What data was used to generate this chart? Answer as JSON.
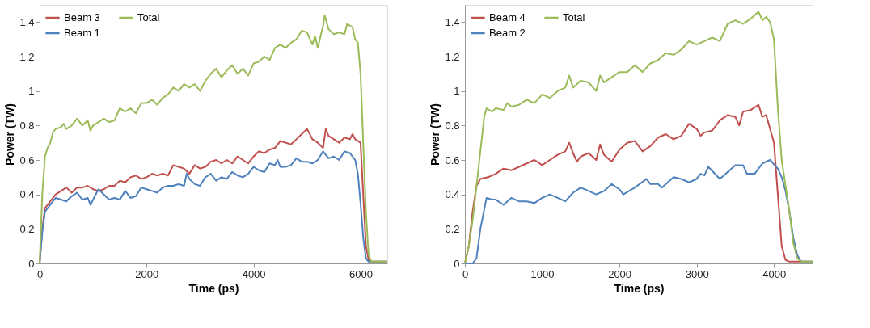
{
  "chart_data": [
    {
      "type": "line",
      "xlabel": "Time (ps)",
      "ylabel": "Power (TW)",
      "xlim": [
        0,
        6500
      ],
      "xticks": [
        0,
        2000,
        4000,
        6000
      ],
      "ylim": [
        0,
        1.5
      ],
      "yticks": [
        0,
        0.2,
        0.4,
        0.6,
        0.8,
        1,
        1.2,
        1.4
      ],
      "grid": false,
      "legend": "top left",
      "marker": "none",
      "line_style": "solid",
      "series": [
        {
          "name": "Beam 3",
          "color": "#c0504d",
          "x": [
            0,
            50,
            100,
            200,
            300,
            400,
            500,
            600,
            700,
            800,
            900,
            1000,
            1100,
            1200,
            1300,
            1400,
            1500,
            1600,
            1700,
            1800,
            1900,
            2000,
            2100,
            2200,
            2300,
            2400,
            2500,
            2600,
            2700,
            2800,
            2900,
            3000,
            3100,
            3200,
            3300,
            3400,
            3500,
            3600,
            3700,
            3800,
            3900,
            4000,
            4100,
            4200,
            4300,
            4400,
            4500,
            4600,
            4700,
            4800,
            4900,
            5000,
            5100,
            5200,
            5300,
            5350,
            5400,
            5500,
            5600,
            5700,
            5800,
            5850,
            5900,
            6000,
            6050,
            6100,
            6150,
            6200,
            6500
          ],
          "values": [
            0,
            0.2,
            0.32,
            0.36,
            0.4,
            0.42,
            0.44,
            0.41,
            0.44,
            0.44,
            0.45,
            0.43,
            0.42,
            0.43,
            0.45,
            0.45,
            0.48,
            0.47,
            0.5,
            0.51,
            0.49,
            0.5,
            0.52,
            0.51,
            0.52,
            0.51,
            0.57,
            0.56,
            0.55,
            0.52,
            0.57,
            0.55,
            0.56,
            0.59,
            0.6,
            0.58,
            0.6,
            0.58,
            0.62,
            0.6,
            0.58,
            0.62,
            0.65,
            0.64,
            0.66,
            0.67,
            0.71,
            0.7,
            0.69,
            0.72,
            0.75,
            0.78,
            0.72,
            0.7,
            0.67,
            0.78,
            0.74,
            0.72,
            0.7,
            0.73,
            0.72,
            0.75,
            0.72,
            0.7,
            0.4,
            0.1,
            0.02,
            0.01,
            0.01
          ]
        },
        {
          "name": "Beam 1",
          "color": "#4f81bd",
          "x": [
            0,
            50,
            100,
            200,
            300,
            400,
            500,
            600,
            700,
            800,
            900,
            950,
            1000,
            1100,
            1200,
            1300,
            1400,
            1500,
            1600,
            1700,
            1800,
            1900,
            2000,
            2100,
            2200,
            2300,
            2400,
            2500,
            2600,
            2700,
            2750,
            2800,
            2900,
            3000,
            3100,
            3200,
            3300,
            3400,
            3500,
            3600,
            3700,
            3800,
            3900,
            4000,
            4100,
            4200,
            4300,
            4400,
            4450,
            4500,
            4600,
            4700,
            4800,
            4900,
            5000,
            5100,
            5200,
            5300,
            5400,
            5500,
            5600,
            5700,
            5800,
            5900,
            5950,
            6000,
            6050,
            6100,
            6150,
            6500
          ],
          "values": [
            0,
            0.18,
            0.3,
            0.34,
            0.38,
            0.37,
            0.36,
            0.39,
            0.41,
            0.37,
            0.38,
            0.34,
            0.37,
            0.43,
            0.4,
            0.37,
            0.38,
            0.37,
            0.42,
            0.38,
            0.39,
            0.44,
            0.43,
            0.42,
            0.41,
            0.44,
            0.45,
            0.45,
            0.46,
            0.45,
            0.52,
            0.49,
            0.46,
            0.45,
            0.5,
            0.52,
            0.48,
            0.5,
            0.49,
            0.53,
            0.51,
            0.5,
            0.52,
            0.56,
            0.54,
            0.53,
            0.58,
            0.57,
            0.6,
            0.56,
            0.56,
            0.57,
            0.61,
            0.59,
            0.59,
            0.58,
            0.6,
            0.65,
            0.61,
            0.62,
            0.6,
            0.65,
            0.64,
            0.6,
            0.52,
            0.35,
            0.15,
            0.03,
            0.01,
            0.01
          ]
        },
        {
          "name": "Total",
          "color": "#9bbb59",
          "x": [
            0,
            50,
            100,
            150,
            200,
            250,
            300,
            400,
            450,
            500,
            600,
            700,
            800,
            900,
            950,
            1000,
            1100,
            1200,
            1300,
            1400,
            1500,
            1600,
            1700,
            1800,
            1900,
            2000,
            2100,
            2200,
            2300,
            2400,
            2500,
            2600,
            2700,
            2800,
            2900,
            3000,
            3100,
            3200,
            3300,
            3400,
            3500,
            3600,
            3700,
            3800,
            3900,
            4000,
            4100,
            4200,
            4300,
            4400,
            4500,
            4600,
            4700,
            4800,
            4900,
            5000,
            5100,
            5150,
            5200,
            5300,
            5330,
            5400,
            5500,
            5600,
            5700,
            5750,
            5850,
            5900,
            5950,
            6000,
            6050,
            6100,
            6150,
            6200,
            6500
          ],
          "values": [
            0,
            0.4,
            0.62,
            0.67,
            0.7,
            0.76,
            0.78,
            0.79,
            0.81,
            0.78,
            0.8,
            0.84,
            0.8,
            0.83,
            0.77,
            0.8,
            0.82,
            0.84,
            0.82,
            0.83,
            0.9,
            0.88,
            0.9,
            0.87,
            0.93,
            0.93,
            0.95,
            0.92,
            0.96,
            0.98,
            1.02,
            1.0,
            1.04,
            1.02,
            1.04,
            1.0,
            1.06,
            1.1,
            1.13,
            1.08,
            1.12,
            1.15,
            1.1,
            1.13,
            1.09,
            1.16,
            1.17,
            1.2,
            1.18,
            1.25,
            1.27,
            1.25,
            1.28,
            1.3,
            1.35,
            1.34,
            1.27,
            1.32,
            1.25,
            1.38,
            1.44,
            1.36,
            1.33,
            1.34,
            1.33,
            1.39,
            1.37,
            1.3,
            1.28,
            1.1,
            0.7,
            0.3,
            0.05,
            0.01,
            0.01
          ]
        }
      ]
    },
    {
      "type": "line",
      "xlabel": "Time (ps)",
      "ylabel": "Power (TW)",
      "xlim": [
        0,
        4500
      ],
      "xticks": [
        0,
        1000,
        2000,
        3000,
        4000
      ],
      "ylim": [
        0,
        1.5
      ],
      "yticks": [
        0,
        0.2,
        0.4,
        0.6,
        0.8,
        1,
        1.2,
        1.4
      ],
      "grid": false,
      "legend": "top left",
      "marker": "none",
      "line_style": "solid",
      "series": [
        {
          "name": "Beam 4",
          "color": "#c0504d",
          "x": [
            0,
            50,
            100,
            150,
            200,
            300,
            400,
            500,
            600,
            700,
            800,
            900,
            1000,
            1100,
            1200,
            1300,
            1350,
            1400,
            1450,
            1500,
            1600,
            1700,
            1750,
            1800,
            1900,
            2000,
            2100,
            2200,
            2300,
            2400,
            2500,
            2600,
            2700,
            2800,
            2900,
            3000,
            3050,
            3100,
            3200,
            3300,
            3400,
            3500,
            3550,
            3600,
            3700,
            3800,
            3850,
            3900,
            4000,
            4050,
            4100,
            4150,
            4200,
            4500
          ],
          "values": [
            0,
            0.1,
            0.3,
            0.45,
            0.49,
            0.5,
            0.52,
            0.55,
            0.54,
            0.56,
            0.58,
            0.6,
            0.57,
            0.6,
            0.63,
            0.65,
            0.7,
            0.64,
            0.59,
            0.62,
            0.64,
            0.6,
            0.69,
            0.63,
            0.59,
            0.66,
            0.7,
            0.71,
            0.65,
            0.68,
            0.73,
            0.75,
            0.72,
            0.74,
            0.81,
            0.78,
            0.74,
            0.76,
            0.77,
            0.83,
            0.86,
            0.85,
            0.8,
            0.88,
            0.89,
            0.92,
            0.85,
            0.86,
            0.7,
            0.4,
            0.1,
            0.02,
            0.01,
            0.01
          ]
        },
        {
          "name": "Beam 2",
          "color": "#4f81bd",
          "x": [
            0,
            100,
            150,
            200,
            280,
            350,
            400,
            500,
            600,
            700,
            800,
            900,
            1000,
            1100,
            1200,
            1300,
            1400,
            1500,
            1600,
            1700,
            1800,
            1900,
            2000,
            2050,
            2200,
            2350,
            2400,
            2500,
            2550,
            2700,
            2800,
            2900,
            3000,
            3050,
            3100,
            3150,
            3300,
            3400,
            3500,
            3600,
            3650,
            3750,
            3850,
            3950,
            4050,
            4100,
            4150,
            4200,
            4250,
            4300,
            4350,
            4500
          ],
          "values": [
            0,
            0,
            0.03,
            0.2,
            0.38,
            0.37,
            0.37,
            0.34,
            0.38,
            0.36,
            0.36,
            0.35,
            0.38,
            0.4,
            0.38,
            0.36,
            0.41,
            0.44,
            0.42,
            0.4,
            0.42,
            0.46,
            0.43,
            0.4,
            0.44,
            0.49,
            0.46,
            0.46,
            0.44,
            0.5,
            0.49,
            0.47,
            0.49,
            0.52,
            0.51,
            0.56,
            0.49,
            0.53,
            0.57,
            0.57,
            0.52,
            0.52,
            0.58,
            0.6,
            0.55,
            0.5,
            0.42,
            0.3,
            0.15,
            0.05,
            0.01,
            0.01
          ]
        },
        {
          "name": "Total",
          "color": "#9bbb59",
          "x": [
            0,
            50,
            100,
            150,
            200,
            250,
            280,
            350,
            400,
            500,
            550,
            600,
            700,
            800,
            900,
            1000,
            1100,
            1200,
            1300,
            1350,
            1400,
            1500,
            1600,
            1700,
            1750,
            1800,
            1900,
            2000,
            2100,
            2200,
            2300,
            2400,
            2500,
            2600,
            2700,
            2800,
            2900,
            3000,
            3100,
            3200,
            3300,
            3400,
            3500,
            3600,
            3700,
            3800,
            3850,
            3900,
            3950,
            4000,
            4050,
            4100,
            4150,
            4200,
            4250,
            4300,
            4350,
            4500
          ],
          "values": [
            0,
            0.1,
            0.25,
            0.45,
            0.65,
            0.85,
            0.9,
            0.88,
            0.9,
            0.89,
            0.93,
            0.91,
            0.92,
            0.95,
            0.93,
            0.98,
            0.96,
            1.0,
            1.02,
            1.09,
            1.02,
            1.06,
            1.05,
            1.0,
            1.09,
            1.05,
            1.08,
            1.11,
            1.11,
            1.15,
            1.11,
            1.16,
            1.18,
            1.22,
            1.21,
            1.24,
            1.29,
            1.27,
            1.29,
            1.31,
            1.29,
            1.39,
            1.41,
            1.39,
            1.42,
            1.46,
            1.41,
            1.43,
            1.4,
            1.3,
            0.9,
            0.6,
            0.45,
            0.3,
            0.12,
            0.03,
            0.01,
            0.01
          ]
        }
      ]
    }
  ]
}
